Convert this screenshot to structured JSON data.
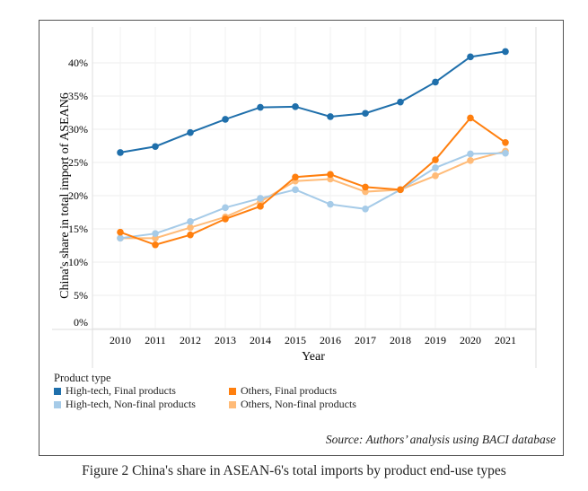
{
  "chart_data": {
    "type": "line",
    "ylabel": "China's share in total import of ASEAN6",
    "xlabel": "Year",
    "x": [
      2010,
      2011,
      2012,
      2013,
      2014,
      2015,
      2016,
      2017,
      2018,
      2019,
      2020,
      2021
    ],
    "yticks": [
      "0%",
      "5%",
      "10%",
      "15%",
      "20%",
      "25%",
      "30%",
      "35%",
      "40%"
    ],
    "ylim": [
      0,
      43
    ],
    "grid": true,
    "legend_title": "Product type",
    "legend_placement": "bottom",
    "series": [
      {
        "name": "High-tech, Final products",
        "color": "#1f6fab",
        "values": [
          26.5,
          27.4,
          29.5,
          31.5,
          33.3,
          33.4,
          31.9,
          32.4,
          34.1,
          37.1,
          40.9,
          41.7
        ]
      },
      {
        "name": "Others, Final products",
        "color": "#ff7f0e",
        "values": [
          14.5,
          12.6,
          14.1,
          16.5,
          18.4,
          22.8,
          23.2,
          21.3,
          20.9,
          25.4,
          31.7,
          28.0
        ]
      },
      {
        "name": "High-tech, Non-final products",
        "color": "#a6cbe8",
        "values": [
          13.6,
          14.3,
          16.1,
          18.2,
          19.6,
          20.9,
          18.7,
          18.0,
          20.9,
          24.2,
          26.3,
          26.4
        ]
      },
      {
        "name": "Others, Non-final products",
        "color": "#ffbb78",
        "values": [
          13.6,
          13.6,
          15.2,
          16.8,
          19.1,
          22.2,
          22.5,
          20.6,
          20.9,
          23.0,
          25.3,
          26.7
        ]
      }
    ]
  },
  "source": "Source: Authors’ analysis using BACI database",
  "caption": "Figure 2 China's share in ASEAN-6's total imports by product end-use types"
}
